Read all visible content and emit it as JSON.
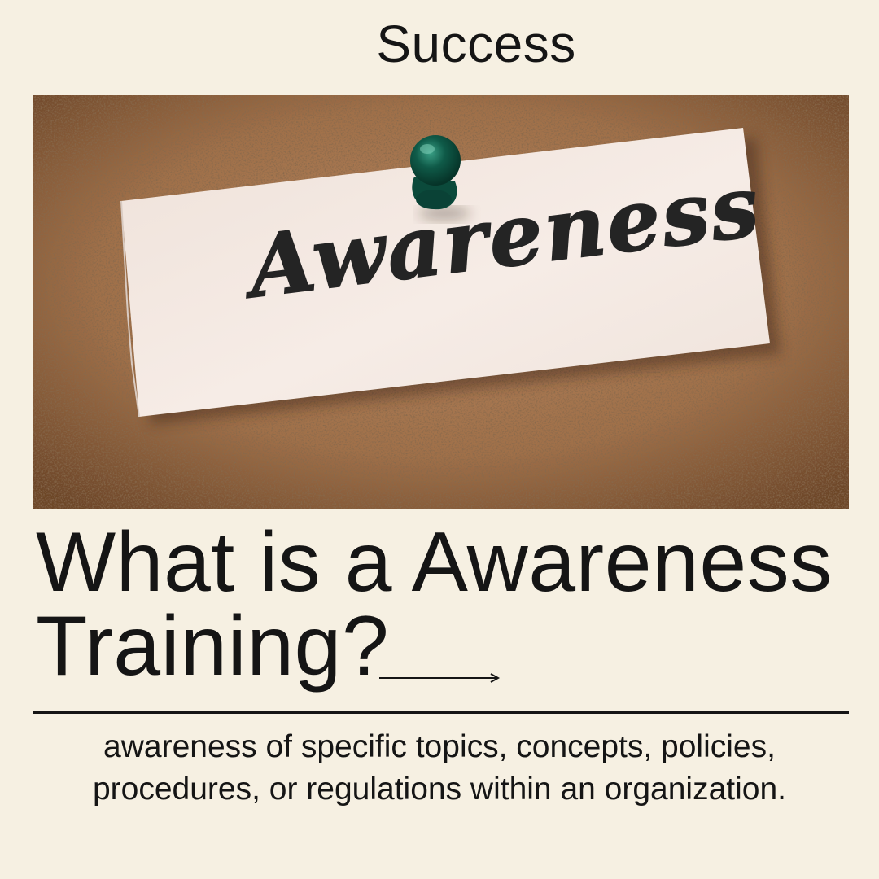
{
  "brand": {
    "title": "Success"
  },
  "photo": {
    "note_text": "Awareness",
    "colors": {
      "cork": "#a87a55",
      "paper": "#f4e9e1",
      "pin": "#0f5a48"
    }
  },
  "headline": {
    "line1": "What is a Awareness",
    "line2": "Training?"
  },
  "description": {
    "text": "awareness of specific topics, concepts, policies, procedures, or regulations within an organization."
  },
  "colors": {
    "background": "#f6f0e2",
    "text": "#151515"
  }
}
